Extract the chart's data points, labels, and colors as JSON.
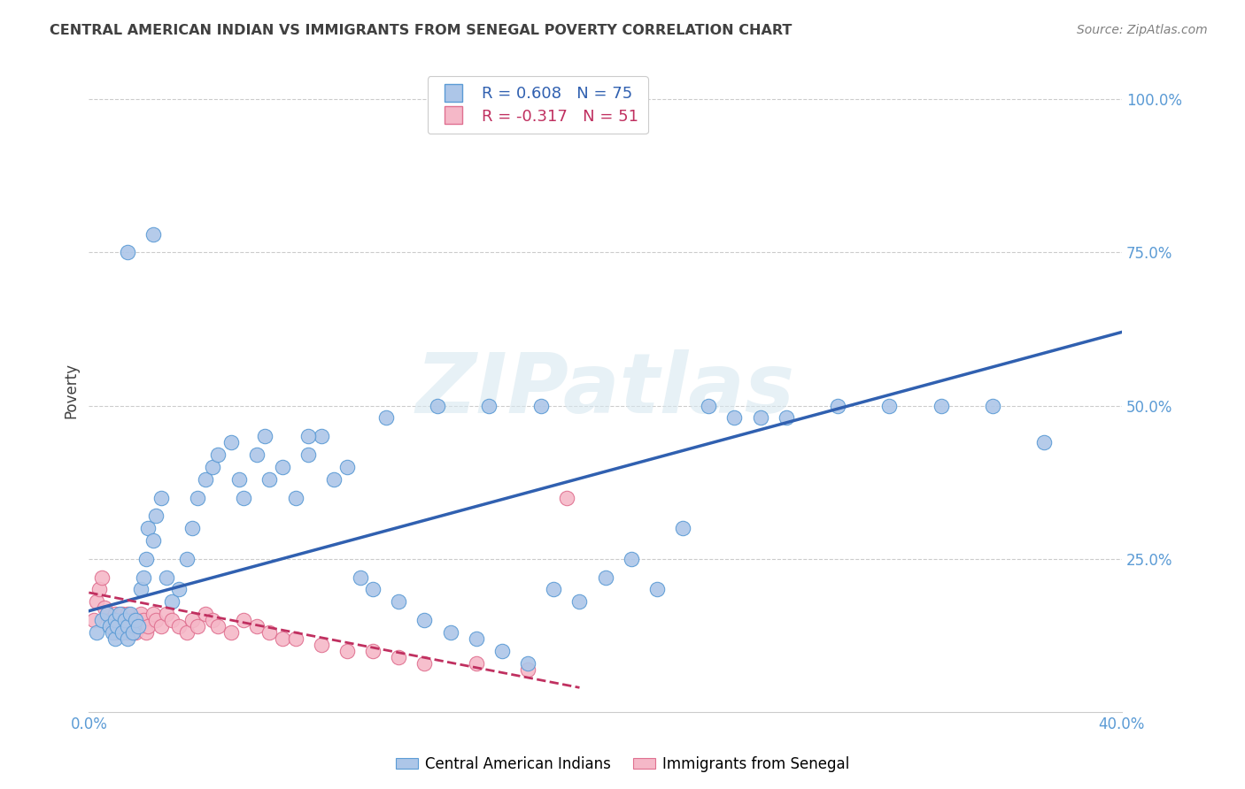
{
  "title": "CENTRAL AMERICAN INDIAN VS IMMIGRANTS FROM SENEGAL POVERTY CORRELATION CHART",
  "source": "Source: ZipAtlas.com",
  "ylabel": "Poverty",
  "xlim": [
    0.0,
    0.4
  ],
  "ylim": [
    0.0,
    1.05
  ],
  "xticks": [
    0.0,
    0.1,
    0.2,
    0.3,
    0.4
  ],
  "xticklabels": [
    "0.0%",
    "",
    "",
    "",
    "40.0%"
  ],
  "yticks": [
    0.25,
    0.5,
    0.75,
    1.0
  ],
  "yticklabels": [
    "25.0%",
    "50.0%",
    "75.0%",
    "100.0%"
  ],
  "blue_R": 0.608,
  "blue_N": 75,
  "pink_R": -0.317,
  "pink_N": 51,
  "blue_color": "#adc6e8",
  "pink_color": "#f5b8c8",
  "blue_edge_color": "#5b9bd5",
  "pink_edge_color": "#e07090",
  "blue_line_color": "#3060b0",
  "pink_line_color": "#c03060",
  "watermark": "ZIPatlas",
  "legend_label_blue": "Central American Indians",
  "legend_label_pink": "Immigrants from Senegal",
  "blue_scatter_x": [
    0.003,
    0.005,
    0.007,
    0.008,
    0.009,
    0.01,
    0.01,
    0.011,
    0.012,
    0.013,
    0.014,
    0.015,
    0.015,
    0.016,
    0.017,
    0.018,
    0.019,
    0.02,
    0.021,
    0.022,
    0.023,
    0.025,
    0.026,
    0.028,
    0.03,
    0.032,
    0.035,
    0.038,
    0.04,
    0.042,
    0.045,
    0.048,
    0.05,
    0.055,
    0.058,
    0.06,
    0.065,
    0.068,
    0.07,
    0.075,
    0.08,
    0.085,
    0.09,
    0.095,
    0.1,
    0.105,
    0.11,
    0.12,
    0.13,
    0.14,
    0.15,
    0.16,
    0.17,
    0.18,
    0.19,
    0.2,
    0.21,
    0.22,
    0.23,
    0.25,
    0.27,
    0.29,
    0.31,
    0.33,
    0.35,
    0.37,
    0.085,
    0.115,
    0.135,
    0.155,
    0.175,
    0.24,
    0.26,
    0.015,
    0.025
  ],
  "blue_scatter_y": [
    0.13,
    0.15,
    0.16,
    0.14,
    0.13,
    0.15,
    0.12,
    0.14,
    0.16,
    0.13,
    0.15,
    0.14,
    0.12,
    0.16,
    0.13,
    0.15,
    0.14,
    0.2,
    0.22,
    0.25,
    0.3,
    0.28,
    0.32,
    0.35,
    0.22,
    0.18,
    0.2,
    0.25,
    0.3,
    0.35,
    0.38,
    0.4,
    0.42,
    0.44,
    0.38,
    0.35,
    0.42,
    0.45,
    0.38,
    0.4,
    0.35,
    0.42,
    0.45,
    0.38,
    0.4,
    0.22,
    0.2,
    0.18,
    0.15,
    0.13,
    0.12,
    0.1,
    0.08,
    0.2,
    0.18,
    0.22,
    0.25,
    0.2,
    0.3,
    0.48,
    0.48,
    0.5,
    0.5,
    0.5,
    0.5,
    0.44,
    0.45,
    0.48,
    0.5,
    0.5,
    0.5,
    0.5,
    0.48,
    0.75,
    0.78
  ],
  "pink_scatter_x": [
    0.002,
    0.003,
    0.004,
    0.005,
    0.006,
    0.007,
    0.008,
    0.009,
    0.01,
    0.01,
    0.011,
    0.012,
    0.013,
    0.014,
    0.015,
    0.015,
    0.016,
    0.017,
    0.018,
    0.019,
    0.02,
    0.02,
    0.021,
    0.022,
    0.023,
    0.025,
    0.026,
    0.028,
    0.03,
    0.032,
    0.035,
    0.038,
    0.04,
    0.042,
    0.045,
    0.048,
    0.05,
    0.055,
    0.06,
    0.065,
    0.07,
    0.075,
    0.08,
    0.09,
    0.1,
    0.11,
    0.12,
    0.13,
    0.15,
    0.17,
    0.185
  ],
  "pink_scatter_y": [
    0.15,
    0.18,
    0.2,
    0.22,
    0.17,
    0.16,
    0.15,
    0.14,
    0.16,
    0.13,
    0.15,
    0.14,
    0.16,
    0.15,
    0.13,
    0.16,
    0.14,
    0.15,
    0.13,
    0.15,
    0.14,
    0.16,
    0.15,
    0.13,
    0.14,
    0.16,
    0.15,
    0.14,
    0.16,
    0.15,
    0.14,
    0.13,
    0.15,
    0.14,
    0.16,
    0.15,
    0.14,
    0.13,
    0.15,
    0.14,
    0.13,
    0.12,
    0.12,
    0.11,
    0.1,
    0.1,
    0.09,
    0.08,
    0.08,
    0.07,
    0.35
  ],
  "blue_line_x": [
    0.0,
    0.4
  ],
  "blue_line_y": [
    0.165,
    0.62
  ],
  "pink_line_x": [
    0.0,
    0.19
  ],
  "pink_line_y": [
    0.195,
    0.04
  ],
  "background_color": "#ffffff",
  "grid_color": "#cccccc",
  "title_color": "#404040",
  "source_color": "#808080",
  "tick_color": "#5b9bd5"
}
